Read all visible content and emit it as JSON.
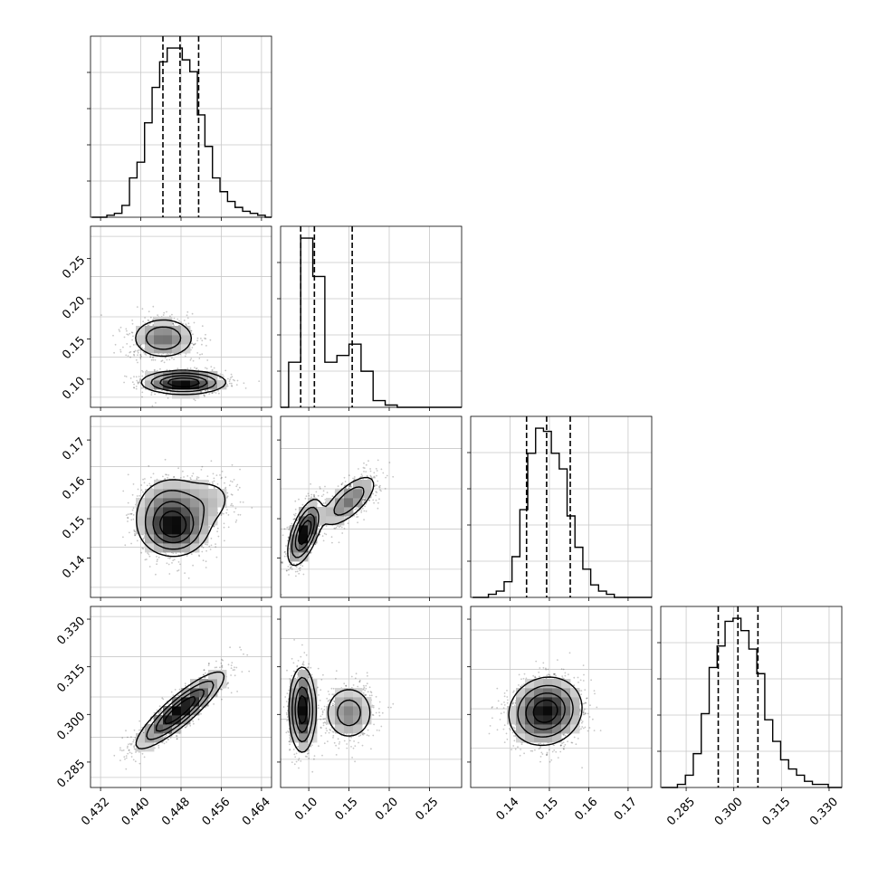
{
  "chart_data": {
    "type": "corner",
    "title": "",
    "parameters": [
      {
        "label": "",
        "range": [
          0.43,
          0.466
        ],
        "ticks": [
          0.432,
          0.44,
          0.448,
          0.456,
          0.464
        ],
        "tick_labels": [
          "0.432",
          "0.440",
          "0.448",
          "0.456",
          "0.464"
        ],
        "quantiles": [
          0.4444,
          0.4478,
          0.4515
        ],
        "hist_x": [
          0.431,
          0.4325,
          0.434,
          0.4355,
          0.437,
          0.4385,
          0.44,
          0.4415,
          0.443,
          0.4445,
          0.446,
          0.4475,
          0.449,
          0.4505,
          0.452,
          0.4535,
          0.455,
          0.4565,
          0.458,
          0.4595,
          0.461,
          0.4625,
          0.464,
          0.4655
        ],
        "hist": [
          0.0,
          0.0,
          0.01,
          0.02,
          0.06,
          0.2,
          0.28,
          0.48,
          0.66,
          0.79,
          0.86,
          0.86,
          0.8,
          0.74,
          0.52,
          0.36,
          0.2,
          0.13,
          0.08,
          0.05,
          0.03,
          0.02,
          0.01,
          0.0
        ]
      },
      {
        "label": "",
        "range": [
          0.065,
          0.29
        ],
        "ticks": [
          0.1,
          0.15,
          0.2,
          0.25
        ],
        "tick_labels": [
          "0.10",
          "0.15",
          "0.20",
          "0.25"
        ],
        "quantiles": [
          0.09,
          0.107,
          0.154
        ],
        "hist_x": [
          0.0675,
          0.0825,
          0.0975,
          0.1125,
          0.1275,
          0.1425,
          0.1575,
          0.1725,
          0.1875,
          0.2025,
          0.2175,
          0.2325,
          0.2475,
          0.2625,
          0.2775
        ],
        "hist": [
          0.0,
          0.2,
          0.75,
          0.58,
          0.2,
          0.23,
          0.28,
          0.16,
          0.03,
          0.01,
          0.0,
          0.0,
          0.0,
          0.0,
          0.0
        ]
      },
      {
        "label": "",
        "range": [
          0.13,
          0.176
        ],
        "ticks": [
          0.14,
          0.15,
          0.16,
          0.17
        ],
        "tick_labels": [
          "0.14",
          "0.15",
          "0.16",
          "0.17"
        ],
        "quantiles": [
          0.1442,
          0.1493,
          0.1553
        ],
        "hist_x": [
          0.1315,
          0.1335,
          0.1355,
          0.1375,
          0.1395,
          0.1415,
          0.1435,
          0.1455,
          0.1475,
          0.1495,
          0.1515,
          0.1535,
          0.1555,
          0.1575,
          0.1595,
          0.1615,
          0.1635,
          0.1655,
          0.1675,
          0.1695,
          0.1715,
          0.1735
        ],
        "hist": [
          0.0,
          0.0,
          0.01,
          0.02,
          0.05,
          0.13,
          0.28,
          0.46,
          0.54,
          0.53,
          0.46,
          0.41,
          0.26,
          0.16,
          0.09,
          0.04,
          0.02,
          0.01,
          0.0,
          0.0,
          0.0,
          0.0
        ]
      },
      {
        "label": "",
        "range": [
          0.277,
          0.334
        ],
        "ticks": [
          0.285,
          0.3,
          0.315,
          0.33
        ],
        "tick_labels": [
          "0.285",
          "0.300",
          "0.315",
          "0.330"
        ],
        "quantiles": [
          0.2951,
          0.3013,
          0.3076
        ],
        "hist_x": [
          0.2785,
          0.281,
          0.2835,
          0.286,
          0.2885,
          0.291,
          0.2935,
          0.296,
          0.2985,
          0.301,
          0.3035,
          0.306,
          0.3085,
          0.311,
          0.3135,
          0.316,
          0.3185,
          0.321,
          0.3235,
          0.326,
          0.3285,
          0.331
        ],
        "hist": [
          0.0,
          0.0,
          0.01,
          0.04,
          0.11,
          0.24,
          0.39,
          0.46,
          0.54,
          0.55,
          0.51,
          0.45,
          0.37,
          0.22,
          0.15,
          0.09,
          0.06,
          0.04,
          0.02,
          0.01,
          0.01,
          0.0
        ]
      }
    ],
    "pairs": [
      {
        "x": 0,
        "y": 1,
        "modes": [
          {
            "mx": 0.4445,
            "my": 0.151,
            "sx": 0.0032,
            "sy": 0.013,
            "rho": 0.0,
            "w": 0.42
          },
          {
            "mx": 0.4485,
            "my": 0.096,
            "sx": 0.004,
            "sy": 0.007,
            "rho": 0.0,
            "w": 0.58
          }
        ]
      },
      {
        "x": 0,
        "y": 2,
        "modes": [
          {
            "mx": 0.4465,
            "my": 0.1475,
            "sx": 0.0033,
            "sy": 0.0035,
            "rho": 0.0,
            "w": 0.55
          },
          {
            "mx": 0.4455,
            "my": 0.1535,
            "sx": 0.0035,
            "sy": 0.004,
            "rho": 0.1,
            "w": 0.3
          },
          {
            "mx": 0.453,
            "my": 0.154,
            "sx": 0.0035,
            "sy": 0.004,
            "rho": 0.2,
            "w": 0.15
          }
        ]
      },
      {
        "x": 1,
        "y": 2,
        "modes": [
          {
            "mx": 0.095,
            "my": 0.1465,
            "sx": 0.01,
            "sy": 0.004,
            "rho": 0.6,
            "w": 0.6
          },
          {
            "mx": 0.15,
            "my": 0.1545,
            "sx": 0.018,
            "sy": 0.0035,
            "rho": 0.7,
            "w": 0.4
          }
        ]
      },
      {
        "x": 0,
        "y": 3,
        "modes": [
          {
            "mx": 0.4478,
            "my": 0.3013,
            "sx": 0.0042,
            "sy": 0.0058,
            "rho": 0.88,
            "w": 1.0
          }
        ]
      },
      {
        "x": 1,
        "y": 3,
        "modes": [
          {
            "mx": 0.092,
            "my": 0.3015,
            "sx": 0.008,
            "sy": 0.0065,
            "rho": 0.0,
            "w": 0.62
          },
          {
            "mx": 0.15,
            "my": 0.3005,
            "sx": 0.016,
            "sy": 0.0045,
            "rho": 0.0,
            "w": 0.38
          }
        ]
      },
      {
        "x": 2,
        "y": 3,
        "modes": [
          {
            "mx": 0.149,
            "my": 0.301,
            "sx": 0.0045,
            "sy": 0.0052,
            "rho": 0.1,
            "w": 1.0
          }
        ]
      }
    ],
    "grid": true,
    "legend": "none"
  }
}
